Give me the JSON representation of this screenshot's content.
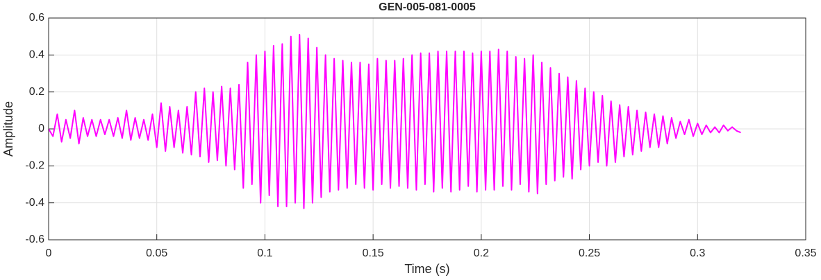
{
  "chart_data": {
    "type": "line",
    "title": "GEN-005-081-0005",
    "xlabel": "Time (s)",
    "ylabel": "Amplitude",
    "x": [
      0,
      0.002,
      0.004,
      0.006,
      0.008,
      0.01,
      0.012,
      0.014,
      0.016,
      0.018,
      0.02,
      0.022,
      0.024,
      0.026,
      0.028,
      0.03,
      0.032,
      0.034,
      0.036,
      0.038,
      0.04,
      0.042,
      0.044,
      0.046,
      0.048,
      0.05,
      0.052,
      0.054,
      0.056,
      0.058,
      0.06,
      0.062,
      0.064,
      0.066,
      0.068,
      0.07,
      0.072,
      0.074,
      0.076,
      0.078,
      0.08,
      0.082,
      0.084,
      0.086,
      0.088,
      0.09,
      0.092,
      0.094,
      0.096,
      0.098,
      0.1,
      0.102,
      0.104,
      0.106,
      0.108,
      0.11,
      0.112,
      0.114,
      0.116,
      0.118,
      0.12,
      0.122,
      0.124,
      0.126,
      0.128,
      0.13,
      0.132,
      0.134,
      0.136,
      0.138,
      0.14,
      0.142,
      0.144,
      0.146,
      0.148,
      0.15,
      0.152,
      0.154,
      0.156,
      0.158,
      0.16,
      0.162,
      0.164,
      0.166,
      0.168,
      0.17,
      0.172,
      0.174,
      0.176,
      0.178,
      0.18,
      0.182,
      0.184,
      0.186,
      0.188,
      0.19,
      0.192,
      0.194,
      0.196,
      0.198,
      0.2,
      0.202,
      0.204,
      0.206,
      0.208,
      0.21,
      0.212,
      0.214,
      0.216,
      0.218,
      0.22,
      0.222,
      0.224,
      0.226,
      0.228,
      0.23,
      0.232,
      0.234,
      0.236,
      0.238,
      0.24,
      0.242,
      0.244,
      0.246,
      0.248,
      0.25,
      0.252,
      0.254,
      0.256,
      0.258,
      0.26,
      0.262,
      0.264,
      0.266,
      0.268,
      0.27,
      0.272,
      0.274,
      0.276,
      0.278,
      0.28,
      0.282,
      0.284,
      0.286,
      0.288,
      0.29,
      0.292,
      0.294,
      0.296,
      0.298,
      0.3,
      0.302,
      0.304,
      0.306,
      0.308,
      0.31,
      0.312,
      0.314,
      0.316,
      0.318,
      0.32
    ],
    "series": [
      {
        "name": "Amplitude",
        "color": "#ff00ff",
        "values": [
          0,
          -0.04,
          0.08,
          -0.07,
          0.05,
          -0.05,
          0.1,
          -0.08,
          0.06,
          -0.04,
          0.05,
          -0.04,
          0.05,
          -0.03,
          0.05,
          -0.04,
          0.06,
          -0.05,
          0.1,
          -0.06,
          0.06,
          -0.05,
          0.05,
          -0.06,
          0.08,
          -0.1,
          0.14,
          -0.12,
          0.12,
          -0.1,
          0.1,
          -0.13,
          0.12,
          -0.14,
          0.2,
          -0.15,
          0.22,
          -0.18,
          0.2,
          -0.17,
          0.23,
          -0.2,
          0.22,
          -0.22,
          0.24,
          -0.32,
          0.36,
          -0.3,
          0.4,
          -0.4,
          0.42,
          -0.36,
          0.45,
          -0.42,
          0.46,
          -0.42,
          0.5,
          -0.4,
          0.51,
          -0.43,
          0.49,
          -0.4,
          0.44,
          -0.37,
          0.4,
          -0.34,
          0.38,
          -0.33,
          0.37,
          -0.32,
          0.36,
          -0.3,
          0.36,
          -0.32,
          0.35,
          -0.33,
          0.38,
          -0.3,
          0.37,
          -0.32,
          0.37,
          -0.31,
          0.38,
          -0.32,
          0.4,
          -0.33,
          0.41,
          -0.3,
          0.41,
          -0.34,
          0.42,
          -0.32,
          0.42,
          -0.34,
          0.42,
          -0.33,
          0.42,
          -0.31,
          0.41,
          -0.34,
          0.42,
          -0.33,
          0.42,
          -0.33,
          0.43,
          -0.31,
          0.42,
          -0.33,
          0.39,
          -0.3,
          0.38,
          -0.34,
          0.4,
          -0.35,
          0.36,
          -0.3,
          0.33,
          -0.28,
          0.3,
          -0.26,
          0.28,
          -0.27,
          0.26,
          -0.22,
          0.22,
          -0.2,
          0.2,
          -0.18,
          0.18,
          -0.2,
          0.15,
          -0.18,
          0.13,
          -0.15,
          0.12,
          -0.14,
          0.1,
          -0.12,
          0.09,
          -0.1,
          0.08,
          -0.1,
          0.07,
          -0.08,
          0.06,
          -0.05,
          0.04,
          -0.03,
          0.05,
          -0.04,
          0.03,
          -0.03,
          0.02,
          -0.02,
          0.01,
          -0.02,
          0.02,
          -0.01,
          0.01,
          -0.01,
          -0.02
        ]
      }
    ],
    "xlim": [
      0,
      0.35
    ],
    "xticks": [
      0,
      0.05,
      0.1,
      0.15,
      0.2,
      0.25,
      0.3,
      0.35
    ],
    "ylim": [
      -0.6,
      0.6
    ],
    "yticks": [
      -0.6,
      -0.4,
      -0.2,
      0,
      0.2,
      0.4,
      0.6
    ],
    "grid": true
  }
}
